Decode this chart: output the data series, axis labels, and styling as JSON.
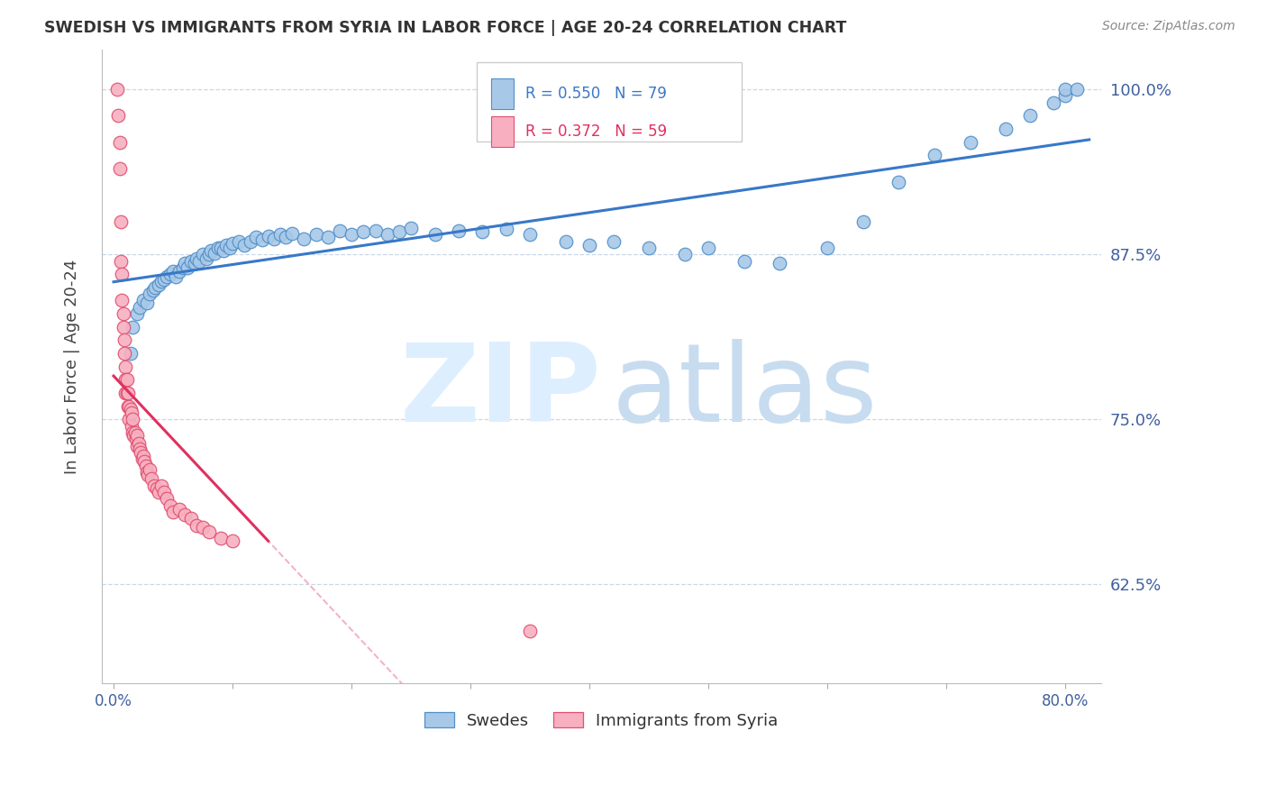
{
  "title": "SWEDISH VS IMMIGRANTS FROM SYRIA IN LABOR FORCE | AGE 20-24 CORRELATION CHART",
  "source": "Source: ZipAtlas.com",
  "ylabel": "In Labor Force | Age 20-24",
  "legend_blue_label": "Swedes",
  "legend_pink_label": "Immigrants from Syria",
  "R_blue": 0.55,
  "N_blue": 79,
  "R_pink": 0.372,
  "N_pink": 59,
  "blue_fill": "#a8c8e8",
  "blue_edge": "#5090c8",
  "pink_fill": "#f8b0c0",
  "pink_edge": "#e05070",
  "blue_line": "#3878c8",
  "pink_line": "#e03060",
  "pink_dash": "#e87090",
  "blue_dash": "#90b8e0",
  "grid_color": "#c8d8e8",
  "tick_color": "#4060a0",
  "title_color": "#333333",
  "source_color": "#888888",
  "watermark_zip_color": "#ddeeff",
  "watermark_atlas_color": "#c8dcf0",
  "swedes_x": [
    0.014,
    0.016,
    0.02,
    0.022,
    0.025,
    0.028,
    0.03,
    0.033,
    0.035,
    0.038,
    0.04,
    0.042,
    0.045,
    0.048,
    0.05,
    0.052,
    0.055,
    0.058,
    0.06,
    0.062,
    0.065,
    0.068,
    0.07,
    0.072,
    0.075,
    0.078,
    0.08,
    0.082,
    0.085,
    0.088,
    0.09,
    0.092,
    0.095,
    0.098,
    0.1,
    0.105,
    0.11,
    0.115,
    0.12,
    0.125,
    0.13,
    0.135,
    0.14,
    0.145,
    0.15,
    0.16,
    0.17,
    0.18,
    0.19,
    0.2,
    0.21,
    0.22,
    0.23,
    0.24,
    0.25,
    0.27,
    0.29,
    0.31,
    0.33,
    0.35,
    0.38,
    0.4,
    0.42,
    0.45,
    0.48,
    0.5,
    0.53,
    0.56,
    0.6,
    0.63,
    0.66,
    0.69,
    0.72,
    0.75,
    0.77,
    0.79,
    0.8,
    0.8,
    0.81
  ],
  "swedes_y": [
    0.8,
    0.82,
    0.83,
    0.835,
    0.84,
    0.838,
    0.845,
    0.848,
    0.85,
    0.852,
    0.855,
    0.856,
    0.858,
    0.86,
    0.862,
    0.858,
    0.862,
    0.865,
    0.868,
    0.865,
    0.87,
    0.868,
    0.872,
    0.87,
    0.875,
    0.872,
    0.875,
    0.878,
    0.876,
    0.88,
    0.88,
    0.878,
    0.882,
    0.88,
    0.883,
    0.885,
    0.882,
    0.885,
    0.888,
    0.886,
    0.889,
    0.887,
    0.89,
    0.888,
    0.891,
    0.887,
    0.89,
    0.888,
    0.893,
    0.89,
    0.892,
    0.893,
    0.89,
    0.892,
    0.895,
    0.89,
    0.893,
    0.892,
    0.894,
    0.89,
    0.885,
    0.882,
    0.885,
    0.88,
    0.875,
    0.88,
    0.87,
    0.868,
    0.88,
    0.9,
    0.93,
    0.95,
    0.96,
    0.97,
    0.98,
    0.99,
    0.995,
    1.0,
    1.0
  ],
  "syria_x": [
    0.003,
    0.004,
    0.005,
    0.005,
    0.006,
    0.006,
    0.007,
    0.007,
    0.008,
    0.008,
    0.009,
    0.009,
    0.01,
    0.01,
    0.01,
    0.011,
    0.011,
    0.012,
    0.012,
    0.013,
    0.013,
    0.014,
    0.015,
    0.015,
    0.016,
    0.016,
    0.017,
    0.018,
    0.019,
    0.02,
    0.02,
    0.021,
    0.022,
    0.023,
    0.024,
    0.025,
    0.026,
    0.027,
    0.028,
    0.029,
    0.03,
    0.032,
    0.034,
    0.036,
    0.038,
    0.04,
    0.042,
    0.045,
    0.048,
    0.05,
    0.055,
    0.06,
    0.065,
    0.07,
    0.075,
    0.08,
    0.09,
    0.1,
    0.35
  ],
  "syria_y": [
    1.0,
    0.98,
    0.96,
    0.94,
    0.9,
    0.87,
    0.86,
    0.84,
    0.83,
    0.82,
    0.81,
    0.8,
    0.79,
    0.78,
    0.77,
    0.78,
    0.77,
    0.76,
    0.77,
    0.76,
    0.75,
    0.758,
    0.755,
    0.745,
    0.75,
    0.74,
    0.738,
    0.74,
    0.735,
    0.738,
    0.73,
    0.732,
    0.728,
    0.725,
    0.72,
    0.722,
    0.718,
    0.715,
    0.71,
    0.708,
    0.712,
    0.705,
    0.7,
    0.698,
    0.695,
    0.7,
    0.695,
    0.69,
    0.685,
    0.68,
    0.682,
    0.678,
    0.675,
    0.67,
    0.668,
    0.665,
    0.66,
    0.658,
    0.59
  ],
  "xlim": [
    -0.01,
    0.83
  ],
  "ylim": [
    0.55,
    1.03
  ],
  "yticks": [
    0.625,
    0.75,
    0.875,
    1.0
  ],
  "ytick_labels": [
    "62.5%",
    "75.0%",
    "87.5%",
    "100.0%"
  ],
  "xticks": [
    0.0,
    0.1,
    0.2,
    0.3,
    0.4,
    0.5,
    0.6,
    0.7,
    0.8
  ],
  "xtick_labels": [
    "0.0%",
    "",
    "",
    "",
    "",
    "",
    "",
    "",
    "80.0%"
  ]
}
